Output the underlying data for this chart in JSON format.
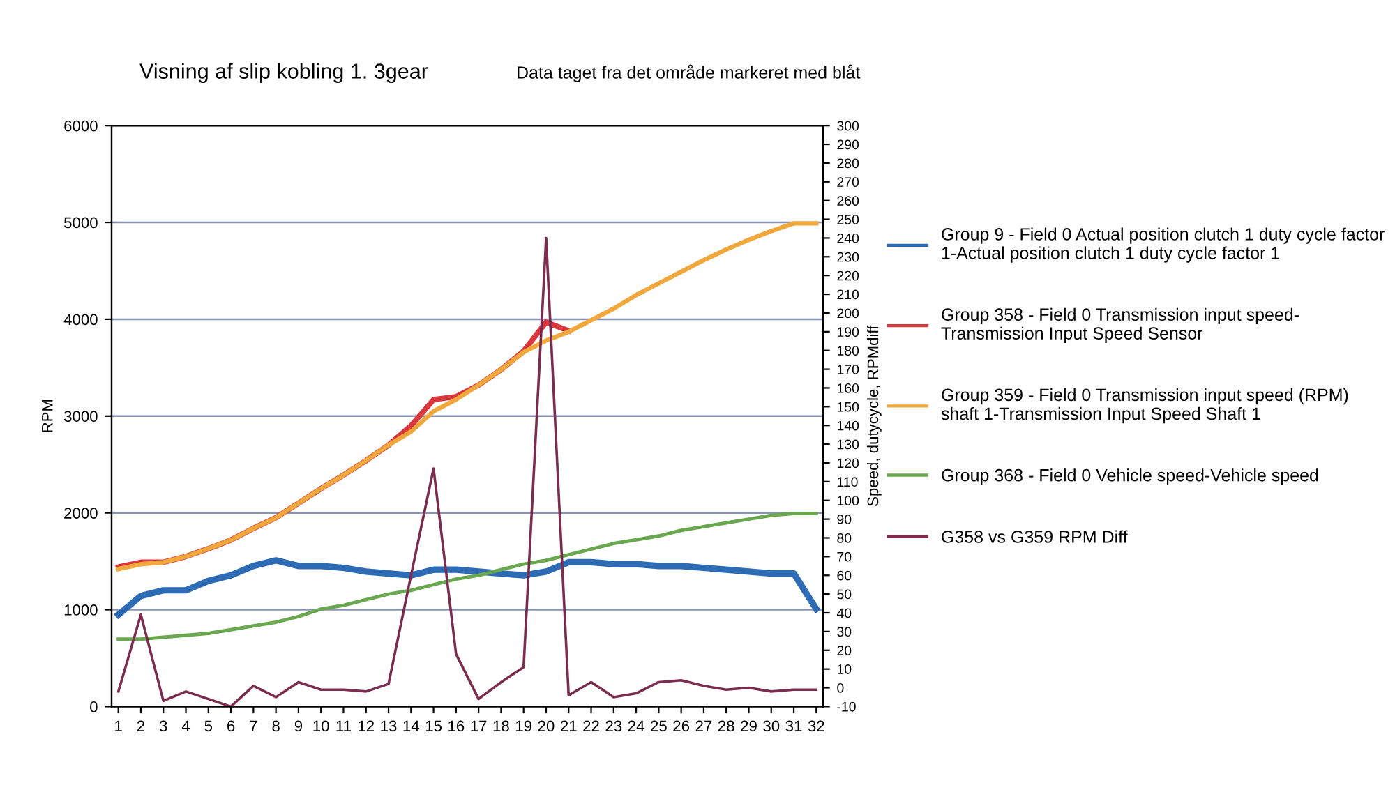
{
  "chart_data": {
    "type": "line",
    "title": "Visning af slip kobling 1. 3gear",
    "subtitle": "Data taget fra det område markeret med blåt",
    "ylabel": "RPM",
    "y2label": "Speed, dutycycle, RPMdiff",
    "categories": [
      "1",
      "2",
      "3",
      "4",
      "5",
      "6",
      "7",
      "8",
      "9",
      "10",
      "11",
      "12",
      "13",
      "14",
      "15",
      "16",
      "17",
      "18",
      "19",
      "20",
      "21",
      "22",
      "23",
      "24",
      "25",
      "26",
      "27",
      "28",
      "29",
      "30",
      "31",
      "32"
    ],
    "ylim": [
      0,
      6000
    ],
    "yticks": [
      0,
      1000,
      2000,
      3000,
      4000,
      5000,
      6000
    ],
    "y2lim": [
      -10,
      300
    ],
    "y2ticks": [
      -10,
      0,
      10,
      20,
      30,
      40,
      50,
      60,
      70,
      80,
      90,
      100,
      110,
      120,
      130,
      140,
      150,
      160,
      170,
      180,
      190,
      200,
      210,
      220,
      230,
      240,
      250,
      260,
      270,
      280,
      290,
      300
    ],
    "grid": "y",
    "legend": "right",
    "marker": "none",
    "line_style": "solid",
    "series": [
      {
        "name": "Group 9 - Field 0 Actual position clutch 1 duty cycle factor\n1-Actual position clutch 1 duty cycle factor 1",
        "color": "#2e6bb5",
        "axis": "y2",
        "values": [
          39,
          49,
          52,
          52,
          57,
          60,
          65,
          68,
          65,
          65,
          64,
          62,
          61,
          60,
          63,
          63,
          62,
          61,
          60,
          62,
          67,
          67,
          66,
          66,
          65,
          65,
          64,
          63,
          62,
          61,
          61,
          42
        ]
      },
      {
        "name": "Group 358 - Field 0 Transmission input speed-\nTransmission Input Speed Sensor",
        "color": "#d9363e",
        "values": [
          1440,
          1490,
          1490,
          1550,
          1630,
          1720,
          1840,
          1950,
          2100,
          2250,
          2390,
          2540,
          2700,
          2900,
          3170,
          3200,
          3320,
          3480,
          3670,
          3970,
          3880,
          null,
          null,
          null,
          null,
          null,
          null,
          null,
          null,
          null,
          null,
          null
        ]
      },
      {
        "name": "Group 359 - Field 0 Transmission input speed (RPM)\nshaft 1-Transmission Input Speed Shaft 1",
        "color": "#f0a83c",
        "values": [
          1420,
          1470,
          1490,
          1550,
          1630,
          1720,
          1840,
          1950,
          2100,
          2250,
          2390,
          2540,
          2700,
          2840,
          3050,
          3170,
          3320,
          3480,
          3660,
          3780,
          3870,
          3990,
          4110,
          4250,
          4370,
          4490,
          4610,
          4720,
          4820,
          4910,
          4990,
          4990
        ]
      },
      {
        "name": "Group 368 - Field 0 Vehicle speed-Vehicle speed",
        "color": "#6aa84f",
        "axis": "y2",
        "values": [
          26,
          26,
          27,
          28,
          29,
          31,
          33,
          35,
          38,
          42,
          44,
          47,
          50,
          52,
          55,
          58,
          60,
          63,
          66,
          68,
          71,
          74,
          77,
          79,
          81,
          84,
          86,
          88,
          90,
          92,
          93,
          93
        ]
      },
      {
        "name": "G358 vs G359 RPM Diff",
        "color": "#7b2d4f",
        "axis": "y2",
        "values": [
          -2,
          39,
          -7,
          -2,
          -6,
          -10,
          1,
          -5,
          3,
          -1,
          -1,
          -2,
          2,
          60,
          117,
          18,
          -6,
          3,
          11,
          240,
          -4,
          3,
          -5,
          -3,
          3,
          4,
          1,
          -1,
          0,
          -2,
          -1,
          -1
        ]
      }
    ]
  }
}
